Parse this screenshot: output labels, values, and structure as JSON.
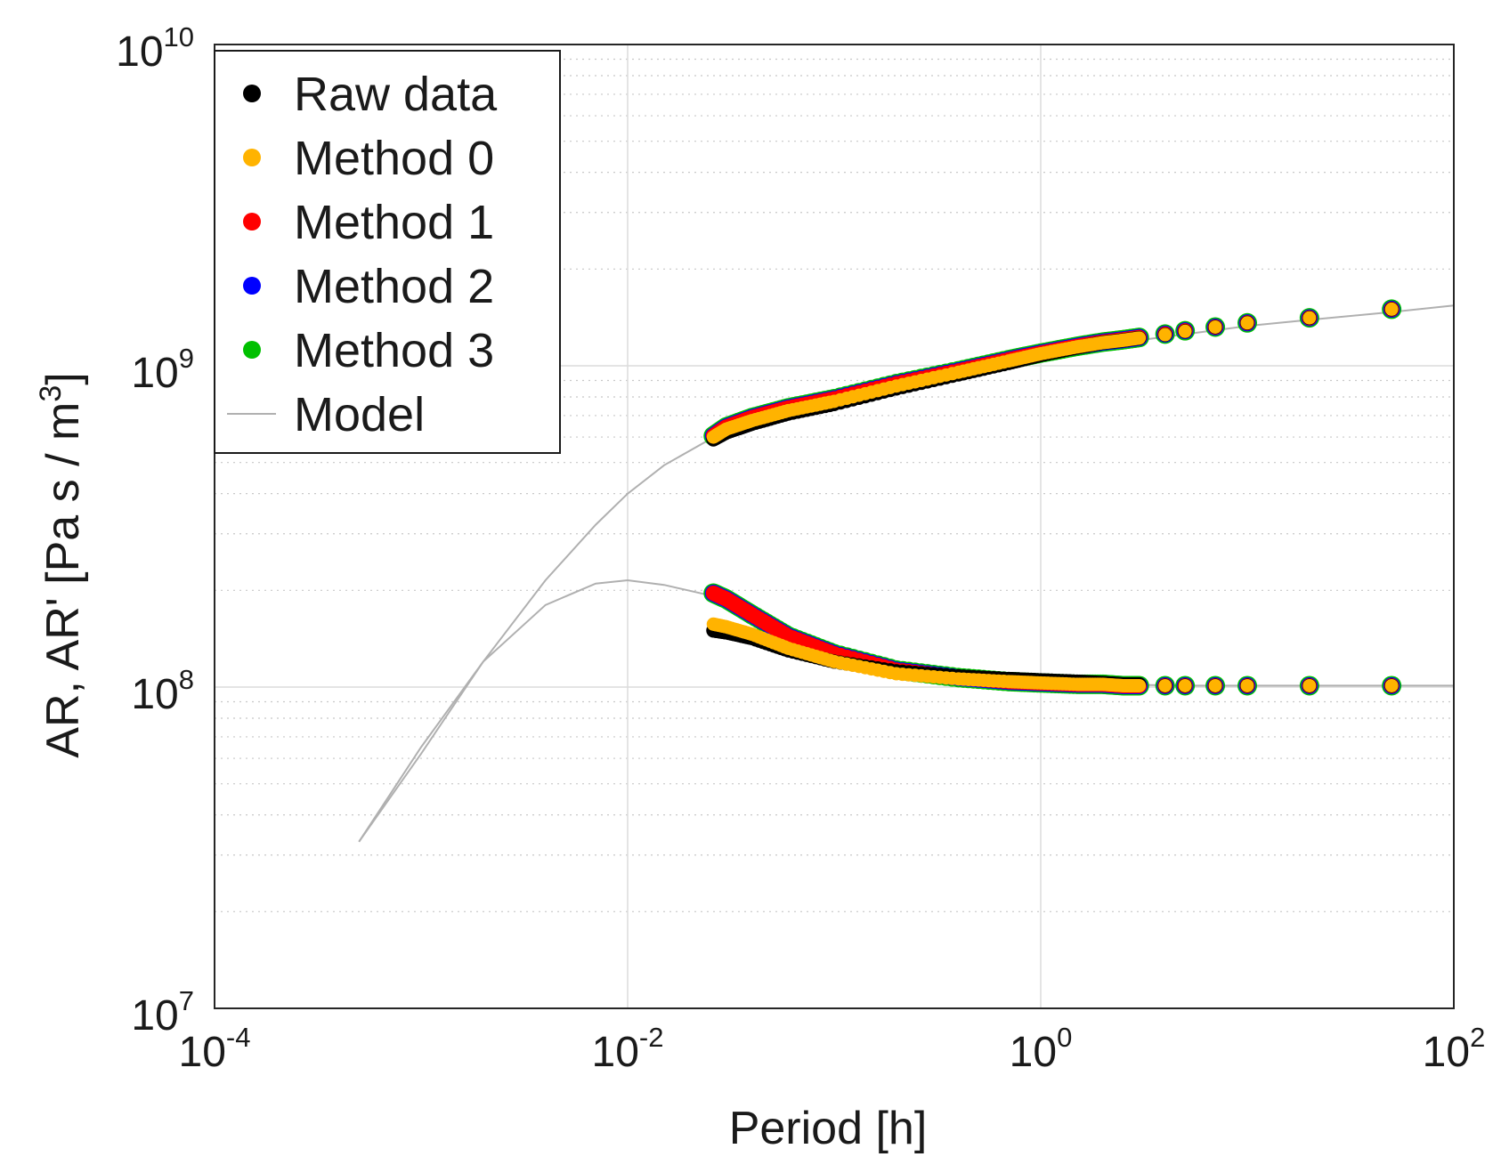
{
  "chart_data": {
    "type": "scatter",
    "xscale": "log",
    "yscale": "log",
    "xlabel": "Period [h]",
    "ylabel": "AR, AR'   [Pa s / m",
    "ylabel_sup": "3",
    "ylabel_close": "]",
    "xlim": [
      0.0001,
      100
    ],
    "ylim": [
      10000000,
      10000000000
    ],
    "grid": true,
    "legend_position": "top-left",
    "x_ticks": [
      {
        "value": 0.0001,
        "base": "10",
        "exp": "-4"
      },
      {
        "value": 0.01,
        "base": "10",
        "exp": "-2"
      },
      {
        "value": 1,
        "base": "10",
        "exp": "0"
      },
      {
        "value": 100,
        "base": "10",
        "exp": "2"
      }
    ],
    "y_ticks": [
      {
        "value": 10000000,
        "base": "10",
        "exp": "7"
      },
      {
        "value": 100000000,
        "base": "10",
        "exp": "8"
      },
      {
        "value": 1000000000,
        "base": "10",
        "exp": "9"
      },
      {
        "value": 10000000000,
        "base": "10",
        "exp": "10"
      }
    ],
    "legend": [
      {
        "label": "Raw data",
        "kind": "marker",
        "color": "#000000"
      },
      {
        "label": "Method 0",
        "kind": "marker",
        "color": "#FFB300"
      },
      {
        "label": "Method 1",
        "kind": "marker",
        "color": "#FF0000"
      },
      {
        "label": "Method 2",
        "kind": "marker",
        "color": "#0000FF"
      },
      {
        "label": "Method 3",
        "kind": "marker",
        "color": "#00C000"
      },
      {
        "label": "Model",
        "kind": "line",
        "color": "#B0B0B0"
      }
    ],
    "series": [
      {
        "name": "Model AR",
        "kind": "line",
        "color": "#B0B0B0",
        "x": [
          0.0005,
          0.001,
          0.002,
          0.004,
          0.007,
          0.01,
          0.015,
          0.025,
          0.04,
          0.07,
          0.1,
          0.2,
          0.4,
          0.7,
          1,
          2,
          4,
          10,
          20,
          50,
          100
        ],
        "y": [
          33000000,
          62000000,
          120000000,
          215000000,
          320000000,
          400000000,
          490000000,
          590000000,
          650000000,
          720000000,
          770000000,
          860000000,
          950000000,
          1030000000,
          1080000000,
          1160000000,
          1230000000,
          1330000000,
          1390000000,
          1470000000,
          1540000000
        ]
      },
      {
        "name": "Model AR'",
        "kind": "line",
        "color": "#B0B0B0",
        "x": [
          0.0005,
          0.001,
          0.002,
          0.004,
          0.007,
          0.01,
          0.015,
          0.025,
          0.04,
          0.07,
          0.1,
          0.2,
          0.4,
          0.7,
          1,
          2,
          5,
          10,
          20,
          50,
          100
        ],
        "y": [
          33000000,
          65000000,
          120000000,
          180000000,
          210000000,
          215000000,
          208000000,
          193000000,
          170000000,
          140000000,
          127000000,
          113000000,
          107000000,
          104000000,
          103000000,
          102000000,
          101000000,
          101000000,
          101000000,
          101000000,
          101000000
        ]
      },
      {
        "name": "Raw data",
        "kind": "marker",
        "color": "#000000",
        "x": [
          0.026,
          0.03,
          0.04,
          0.06,
          0.1,
          0.2,
          0.4,
          0.7,
          1,
          1.5,
          2,
          2.5,
          3,
          4,
          5,
          7,
          10,
          20,
          50
        ],
        "y_upper": [
          590000000,
          620000000,
          660000000,
          710000000,
          760000000,
          850000000,
          940000000,
          1020000000,
          1080000000,
          1140000000,
          1180000000,
          1200000000,
          1220000000,
          1250000000,
          1280000000,
          1320000000,
          1360000000,
          1410000000,
          1500000000
        ],
        "y_lower": [
          150000000,
          148000000,
          142000000,
          130000000,
          120000000,
          112000000,
          108000000,
          106000000,
          105000000,
          104000000,
          103000000,
          102000000,
          102000000,
          101000000,
          101000000,
          101000000,
          101000000,
          101000000,
          101000000
        ]
      },
      {
        "name": "Method 0",
        "kind": "marker",
        "color": "#FFB300",
        "x": [
          0.026,
          0.03,
          0.04,
          0.06,
          0.1,
          0.2,
          0.4,
          0.7,
          1,
          1.5,
          2,
          2.5,
          3,
          4,
          5,
          7,
          10,
          20,
          50
        ],
        "y_upper": [
          600000000,
          635000000,
          675000000,
          725000000,
          775000000,
          865000000,
          955000000,
          1035000000,
          1090000000,
          1145000000,
          1180000000,
          1200000000,
          1220000000,
          1250000000,
          1280000000,
          1320000000,
          1360000000,
          1410000000,
          1500000000
        ],
        "y_lower": [
          157000000,
          154000000,
          146000000,
          132000000,
          120000000,
          110000000,
          106000000,
          104000000,
          103000000,
          102000000,
          102000000,
          101000000,
          101000000,
          101000000,
          101000000,
          101000000,
          101000000,
          101000000,
          101000000
        ]
      },
      {
        "name": "Method 1",
        "kind": "marker",
        "color": "#FF0000",
        "x": [
          0.026,
          0.03,
          0.04,
          0.06,
          0.1,
          0.2,
          0.4,
          0.7,
          1,
          1.5,
          2,
          2.5,
          3,
          4,
          5,
          7,
          10,
          20,
          50
        ],
        "y_upper": [
          605000000,
          645000000,
          690000000,
          740000000,
          790000000,
          880000000,
          965000000,
          1045000000,
          1095000000,
          1150000000,
          1185000000,
          1205000000,
          1225000000,
          1255000000,
          1285000000,
          1320000000,
          1360000000,
          1410000000,
          1500000000
        ],
        "y_lower": [
          196000000,
          188000000,
          168000000,
          144000000,
          127000000,
          113000000,
          107000000,
          104000000,
          103000000,
          102000000,
          102000000,
          101000000,
          101000000,
          101000000,
          101000000,
          101000000,
          101000000,
          101000000,
          101000000
        ]
      },
      {
        "name": "Method 2",
        "kind": "marker",
        "color": "#0000FF",
        "x": [
          0.026,
          0.03,
          0.04,
          0.06,
          0.1,
          0.2,
          0.4,
          0.7,
          1,
          1.5,
          2,
          2.5,
          3,
          4,
          5,
          7,
          10,
          20,
          50
        ],
        "y_upper": [
          605000000,
          645000000,
          690000000,
          740000000,
          790000000,
          880000000,
          965000000,
          1045000000,
          1095000000,
          1150000000,
          1185000000,
          1205000000,
          1225000000,
          1255000000,
          1285000000,
          1320000000,
          1360000000,
          1410000000,
          1500000000
        ],
        "y_lower": [
          196000000,
          188000000,
          168000000,
          144000000,
          127000000,
          113000000,
          107000000,
          104000000,
          103000000,
          102000000,
          102000000,
          101000000,
          101000000,
          101000000,
          101000000,
          101000000,
          101000000,
          101000000,
          101000000
        ]
      },
      {
        "name": "Method 3",
        "kind": "marker",
        "color": "#00C000",
        "x": [
          0.026,
          0.03,
          0.04,
          0.06,
          0.1,
          0.2,
          0.4,
          0.7,
          1,
          1.5,
          2,
          2.5,
          3,
          4,
          5,
          7,
          10,
          20,
          50
        ],
        "y_upper": [
          605000000,
          645000000,
          690000000,
          740000000,
          790000000,
          880000000,
          965000000,
          1045000000,
          1095000000,
          1150000000,
          1185000000,
          1205000000,
          1225000000,
          1255000000,
          1285000000,
          1320000000,
          1360000000,
          1410000000,
          1500000000
        ],
        "y_lower": [
          196000000,
          188000000,
          168000000,
          144000000,
          127000000,
          113000000,
          107000000,
          104000000,
          103000000,
          102000000,
          102000000,
          101000000,
          101000000,
          101000000,
          101000000,
          101000000,
          101000000,
          101000000,
          101000000
        ]
      }
    ]
  }
}
